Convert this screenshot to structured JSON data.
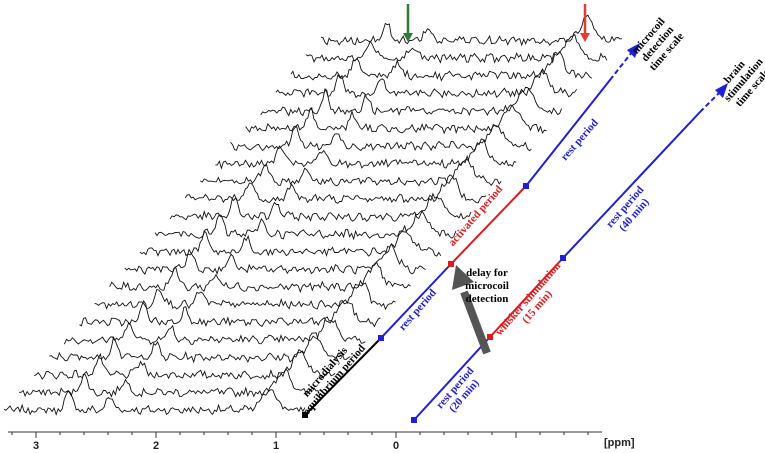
{
  "chart_data": {
    "type": "line",
    "title": "",
    "xlabel": "[ppm]",
    "ylabel": "",
    "xlim": [
      3.3,
      -1.85
    ],
    "x_reversed": true,
    "x_ticks": [
      "3",
      "2",
      "1",
      "0"
    ],
    "grid": false,
    "series_count": 22,
    "stacking": "waterfall",
    "peaks_ppm": [
      2.75,
      2.4,
      1.05
    ],
    "arrows": [
      {
        "color": "#2e7d32",
        "label": ""
      },
      {
        "color": "#e53935",
        "label": ""
      }
    ]
  },
  "timeline": {
    "microcoil": {
      "label": "microcoil\ndetection\ntime scale",
      "segments": [
        {
          "label": "microdialysis\nequilibrium period",
          "color": "#000000"
        },
        {
          "label": "rest period",
          "color": "#1f1fd6"
        },
        {
          "label": "activated period",
          "color": "#e01b1b"
        },
        {
          "label": "rest period",
          "color": "#1f1fd6"
        }
      ]
    },
    "brain": {
      "label": "brain\nstimulation\ntime scale",
      "segments": [
        {
          "label": "rest period\n(20 min)",
          "color": "#1f1fd6"
        },
        {
          "label": "whisker stimulation\n(15 min)",
          "color": "#e01b1b"
        },
        {
          "label": "rest period\n(40 min)",
          "color": "#1f1fd6"
        }
      ]
    },
    "delay_label": "delay for\nmicrocoil\ndetection"
  }
}
